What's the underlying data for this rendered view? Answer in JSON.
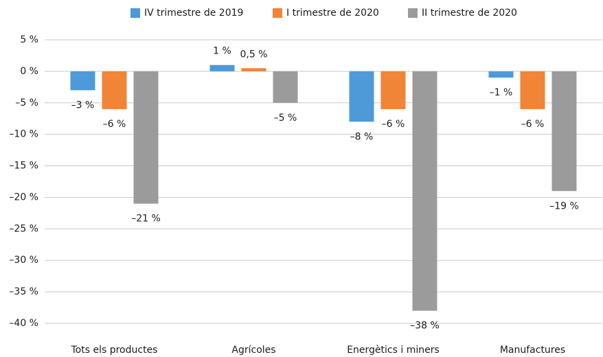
{
  "chart_data": {
    "type": "bar",
    "categories": [
      "Tots els productes",
      "Agrícoles",
      "Energètics i miners",
      "Manufactures"
    ],
    "series": [
      {
        "name": "IV trimestre de 2019",
        "color": "#4e9ad8",
        "values": [
          -3,
          1,
          -8,
          -1
        ],
        "value_labels": [
          "–3 %",
          "1 %",
          "–8 %",
          "–1 %"
        ]
      },
      {
        "name": "I trimestre de 2020",
        "color": "#f08437",
        "values": [
          -6,
          0.5,
          -6,
          -6
        ],
        "value_labels": [
          "–6 %",
          "0,5 %",
          "–6 %",
          "–6 %"
        ]
      },
      {
        "name": "II trimestre de 2020",
        "color": "#9b9b9b",
        "values": [
          -21,
          -5,
          -38,
          -19
        ],
        "value_labels": [
          "–21 %",
          "–5 %",
          "–38 %",
          "–19 %"
        ]
      }
    ],
    "ylim": [
      -40,
      5
    ],
    "yticks": [
      {
        "value": 5,
        "label": "5 %"
      },
      {
        "value": 0,
        "label": "0 %"
      },
      {
        "value": -5,
        "label": "–5 %"
      },
      {
        "value": -10,
        "label": "–10 %"
      },
      {
        "value": -15,
        "label": "–15 %"
      },
      {
        "value": -20,
        "label": "–20 %"
      },
      {
        "value": -25,
        "label": "–25 %"
      },
      {
        "value": -30,
        "label": "–30 %"
      },
      {
        "value": -35,
        "label": "–35 %"
      },
      {
        "value": -40,
        "label": "–40 %"
      }
    ],
    "grid": true,
    "legend": "top"
  }
}
